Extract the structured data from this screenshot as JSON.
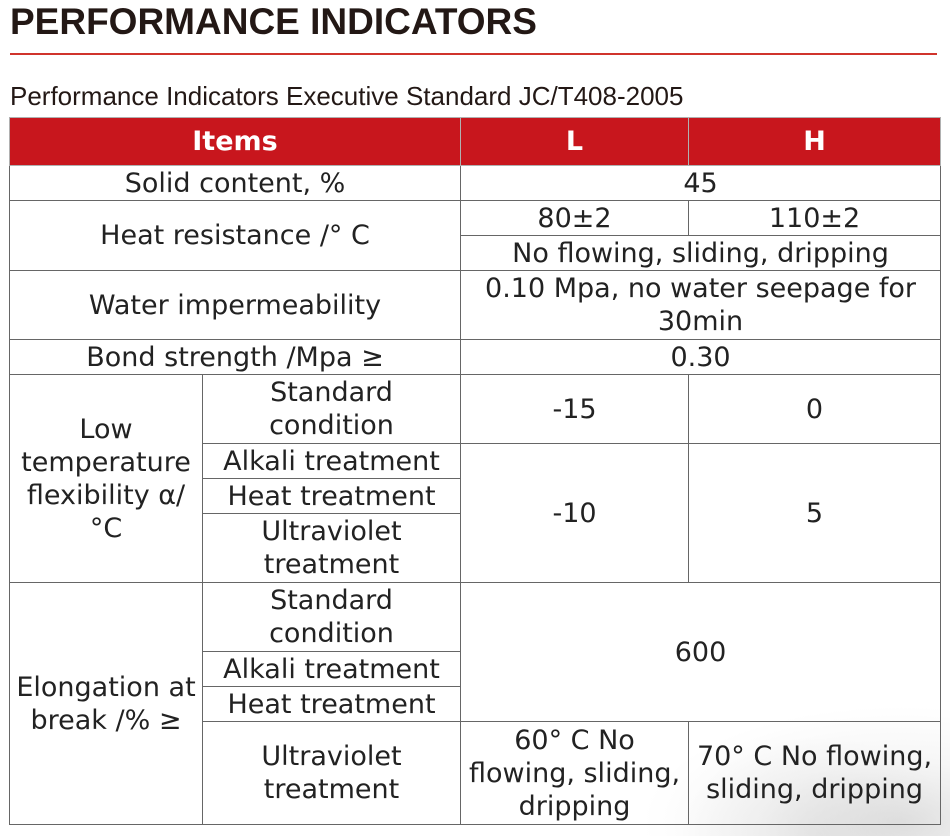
{
  "header": {
    "title": "PERFORMANCE INDICATORS",
    "subtitle": "Performance Indicators Executive Standard JC/T408-2005"
  },
  "table": {
    "columns": {
      "items": "Items",
      "l": "L",
      "h": "H"
    },
    "solid": {
      "label": "Solid content, %",
      "value": "45"
    },
    "heat": {
      "label": "Heat resistance /° C",
      "l": "80±2",
      "h": "110±2",
      "result": "No flowing, sliding, dripping"
    },
    "water": {
      "label": "Water impermeability",
      "value": "0.10 Mpa, no water seepage for 30min"
    },
    "bond": {
      "label": "Bond strength /Mpa ≥",
      "value": "0.30"
    },
    "low_temp": {
      "label": "Low temperature flexibility α/°C",
      "standard": {
        "label": "Standard condition",
        "l": "-15",
        "h": "0"
      },
      "alkali": "Alkali treatment",
      "heat_treat": "Heat treatment",
      "uv": "Ultraviolet treatment",
      "treated_l": "-10",
      "treated_h": "5"
    },
    "elongation": {
      "label": "Elongation at break /% ≥",
      "standard": "Standard condition",
      "alkali": "Alkali treatment",
      "heat_treat": "Heat treatment",
      "value": "600",
      "uv": {
        "label": "Ultraviolet treatment",
        "l": "60° C No flowing, sliding, dripping",
        "h": "70° C No flowing, sliding, dripping"
      }
    }
  },
  "colors": {
    "header_bg": "#c8161d",
    "accent_rule": "#d0342c"
  }
}
